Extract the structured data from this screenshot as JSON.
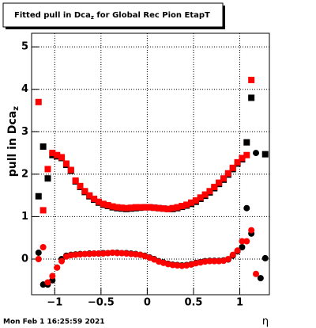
{
  "chart_data": {
    "type": "scatter",
    "title": "Fitted pull in Dca",
    "title_subscript": "z",
    "title_suffix": " for Global Rec Pion EtapT",
    "ylabel": "pull in Dca",
    "ylabel_subscript": "z",
    "xlabel": "η",
    "footer": "Mon Feb  1 16:25:59 2021",
    "xlim": [
      -1.25,
      1.32
    ],
    "ylim": [
      -0.84,
      5.32
    ],
    "xticks": [
      {
        "value": -1,
        "label": "−1"
      },
      {
        "value": -0.5,
        "label": "−0.5"
      },
      0,
      0.5,
      1
    ],
    "yticks": [
      0,
      1,
      2,
      3,
      4,
      5
    ],
    "grid": true,
    "x": [
      -1.175,
      -1.125,
      -1.075,
      -1.025,
      -0.975,
      -0.925,
      -0.875,
      -0.825,
      -0.775,
      -0.725,
      -0.675,
      -0.625,
      -0.575,
      -0.525,
      -0.475,
      -0.425,
      -0.375,
      -0.325,
      -0.275,
      -0.225,
      -0.175,
      -0.125,
      -0.075,
      -0.025,
      0.025,
      0.075,
      0.125,
      0.175,
      0.225,
      0.275,
      0.325,
      0.375,
      0.425,
      0.475,
      0.525,
      0.575,
      0.625,
      0.675,
      0.725,
      0.775,
      0.825,
      0.875,
      0.925,
      0.975,
      1.025,
      1.075,
      1.125,
      1.175,
      1.225,
      1.275
    ],
    "series": [
      {
        "color": "#000000",
        "marker": "square",
        "values": [
          1.48,
          2.65,
          1.9,
          2.45,
          2.42,
          2.38,
          2.22,
          2.08,
          1.83,
          1.7,
          1.58,
          1.48,
          1.4,
          1.33,
          1.28,
          1.25,
          1.22,
          1.2,
          1.19,
          1.18,
          1.19,
          1.2,
          1.21,
          1.22,
          1.22,
          1.21,
          1.2,
          1.19,
          1.18,
          1.18,
          1.2,
          1.23,
          1.26,
          1.3,
          1.35,
          1.42,
          1.49,
          1.57,
          1.67,
          1.77,
          1.87,
          1.99,
          2.12,
          2.25,
          2.35,
          2.75,
          3.8,
          null,
          null,
          2.47
        ]
      },
      {
        "color": "#ff0000",
        "marker": "square",
        "values": [
          3.7,
          1.15,
          2.12,
          2.5,
          2.45,
          2.4,
          2.25,
          2.1,
          1.85,
          1.72,
          1.6,
          1.5,
          1.42,
          1.35,
          1.3,
          1.27,
          1.24,
          1.22,
          1.21,
          1.2,
          1.21,
          1.22,
          1.22,
          1.22,
          1.22,
          1.21,
          1.2,
          1.19,
          1.18,
          1.2,
          1.22,
          1.25,
          1.28,
          1.33,
          1.38,
          1.45,
          1.52,
          1.6,
          1.7,
          1.8,
          1.9,
          2.02,
          2.15,
          2.28,
          2.38,
          2.45,
          4.22,
          null,
          null,
          null
        ]
      },
      {
        "color": "#000000",
        "marker": "circle",
        "values": [
          0.15,
          -0.6,
          -0.6,
          -0.5,
          -0.2,
          0.0,
          0.08,
          0.1,
          0.11,
          0.12,
          0.12,
          0.13,
          0.13,
          0.13,
          0.14,
          0.14,
          0.15,
          0.15,
          0.14,
          0.14,
          0.13,
          0.12,
          0.1,
          0.08,
          0.04,
          0.0,
          -0.05,
          -0.08,
          -0.11,
          -0.13,
          -0.14,
          -0.15,
          -0.14,
          -0.12,
          -0.09,
          -0.07,
          -0.05,
          -0.04,
          -0.04,
          -0.04,
          -0.03,
          -0.01,
          0.08,
          0.18,
          0.28,
          1.2,
          0.6,
          2.5,
          -0.45,
          0.02
        ]
      },
      {
        "color": "#ff0000",
        "marker": "circle",
        "values": [
          0.0,
          0.28,
          -0.55,
          -0.4,
          -0.2,
          -0.05,
          0.06,
          0.09,
          0.1,
          0.11,
          0.12,
          0.12,
          0.13,
          0.13,
          0.13,
          0.14,
          0.15,
          0.14,
          0.14,
          0.13,
          0.12,
          0.11,
          0.1,
          0.07,
          0.03,
          -0.01,
          -0.06,
          -0.09,
          -0.12,
          -0.14,
          -0.15,
          -0.16,
          -0.15,
          -0.13,
          -0.1,
          -0.08,
          -0.06,
          -0.05,
          -0.05,
          -0.05,
          -0.04,
          0.0,
          0.1,
          0.2,
          0.42,
          0.42,
          0.68,
          -0.35,
          null,
          null
        ]
      }
    ]
  }
}
